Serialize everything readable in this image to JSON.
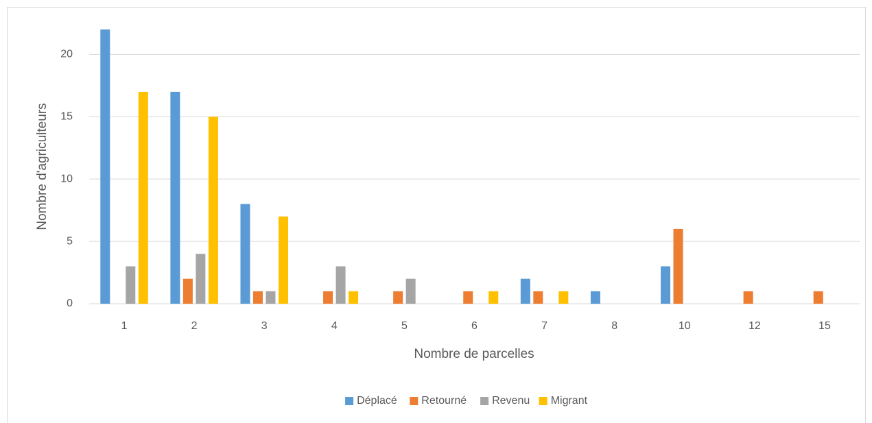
{
  "chart_data": {
    "type": "bar",
    "x_label": "Nombre de parcelles",
    "y_label": "Nombre d'agriculteurs",
    "categories": [
      "1",
      "2",
      "3",
      "4",
      "5",
      "6",
      "7",
      "8",
      "10",
      "12",
      "15"
    ],
    "series": [
      {
        "name": "Déplacé",
        "color": "#5b9bd5",
        "values": [
          22,
          17,
          8,
          null,
          null,
          null,
          2,
          1,
          3,
          null,
          null
        ]
      },
      {
        "name": "Retourné",
        "color": "#ed7d31",
        "values": [
          null,
          2,
          1,
          1,
          1,
          1,
          1,
          null,
          6,
          1,
          1
        ]
      },
      {
        "name": "Revenu",
        "color": "#a5a5a5",
        "values": [
          3,
          4,
          1,
          3,
          2,
          null,
          null,
          null,
          null,
          null,
          null
        ]
      },
      {
        "name": "Migrant",
        "color": "#ffc000",
        "values": [
          17,
          15,
          7,
          1,
          null,
          1,
          1,
          null,
          null,
          null,
          null
        ]
      }
    ],
    "ylim": [
      0,
      22
    ],
    "yticks": [
      0,
      5,
      10,
      15,
      20
    ],
    "grid": true,
    "legend": "bottom"
  }
}
